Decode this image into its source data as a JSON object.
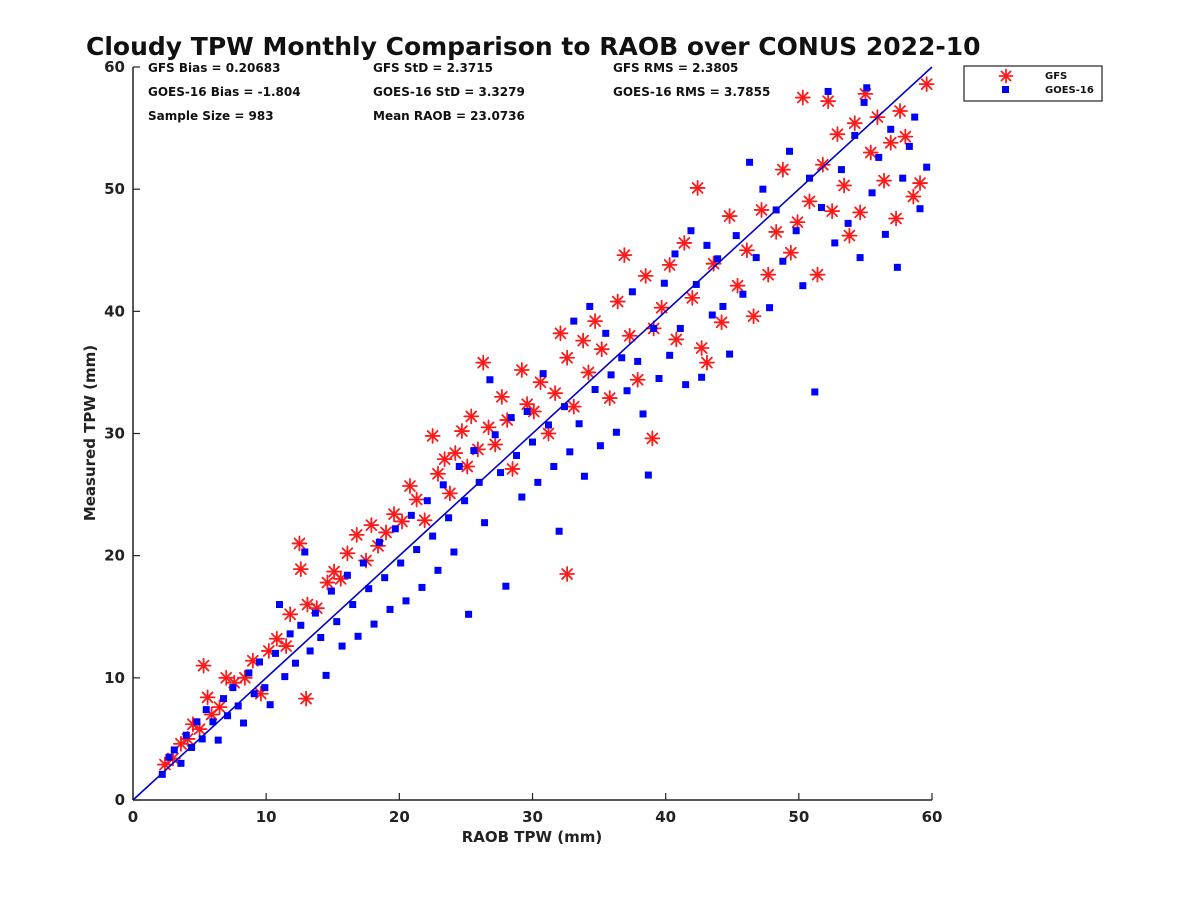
{
  "chart_data": {
    "type": "scatter",
    "title": "Cloudy TPW Monthly Comparison to RAOB over CONUS 2022-10",
    "xlabel": "RAOB TPW (mm)",
    "ylabel": "Measured TPW (mm)",
    "xlim": [
      0,
      60
    ],
    "ylim": [
      0,
      60
    ],
    "x_ticks": [
      0,
      10,
      20,
      30,
      40,
      50,
      60
    ],
    "y_ticks": [
      0,
      10,
      20,
      30,
      40,
      50,
      60
    ],
    "grid": false,
    "legend_position": "top-right, outside plot",
    "reference_line": {
      "from": [
        0,
        0
      ],
      "to": [
        60,
        60
      ],
      "color": "#0000cc"
    },
    "stats": {
      "gfs_bias": "GFS Bias = 0.20683",
      "goes_bias": "GOES-16 Bias = -1.804",
      "sample_size": "Sample Size = 983",
      "gfs_std": "GFS StD = 2.3715",
      "goes_std": "GOES-16 StD = 3.3279",
      "mean_raob": "Mean RAOB = 23.0736",
      "gfs_rms": "GFS RMS = 2.3805",
      "goes_rms": "GOES-16 RMS = 3.7855"
    },
    "series": [
      {
        "name": "GFS",
        "marker": "asterisk",
        "color": "#ff1a1a",
        "points": [
          [
            2.4,
            2.9
          ],
          [
            3.0,
            3.4
          ],
          [
            3.6,
            4.6
          ],
          [
            4.1,
            5.0
          ],
          [
            4.5,
            6.2
          ],
          [
            5.0,
            5.8
          ],
          [
            5.3,
            11.0
          ],
          [
            5.6,
            8.4
          ],
          [
            5.9,
            7.0
          ],
          [
            6.5,
            7.6
          ],
          [
            7.0,
            10.0
          ],
          [
            7.6,
            9.6
          ],
          [
            8.4,
            10.0
          ],
          [
            9.0,
            11.4
          ],
          [
            9.6,
            8.7
          ],
          [
            10.2,
            12.2
          ],
          [
            10.8,
            13.2
          ],
          [
            11.5,
            12.6
          ],
          [
            11.8,
            15.2
          ],
          [
            12.5,
            21.0
          ],
          [
            12.6,
            18.9
          ],
          [
            13.0,
            8.3
          ],
          [
            13.1,
            16.0
          ],
          [
            13.8,
            15.7
          ],
          [
            14.6,
            17.8
          ],
          [
            15.1,
            18.7
          ],
          [
            15.6,
            18.1
          ],
          [
            16.1,
            20.2
          ],
          [
            16.8,
            21.7
          ],
          [
            17.5,
            19.6
          ],
          [
            17.9,
            22.5
          ],
          [
            18.4,
            20.8
          ],
          [
            19.0,
            21.9
          ],
          [
            19.6,
            23.4
          ],
          [
            20.2,
            22.8
          ],
          [
            20.8,
            25.7
          ],
          [
            21.3,
            24.6
          ],
          [
            21.9,
            22.9
          ],
          [
            22.5,
            29.8
          ],
          [
            22.9,
            26.7
          ],
          [
            23.4,
            27.9
          ],
          [
            23.8,
            25.1
          ],
          [
            24.2,
            28.4
          ],
          [
            24.7,
            30.2
          ],
          [
            25.1,
            27.3
          ],
          [
            25.4,
            31.4
          ],
          [
            25.9,
            28.7
          ],
          [
            26.3,
            35.8
          ],
          [
            26.7,
            30.5
          ],
          [
            27.2,
            29.1
          ],
          [
            27.7,
            33.0
          ],
          [
            28.1,
            31.1
          ],
          [
            28.5,
            27.1
          ],
          [
            29.2,
            35.2
          ],
          [
            29.6,
            32.4
          ],
          [
            30.1,
            31.8
          ],
          [
            30.6,
            34.2
          ],
          [
            31.2,
            30.0
          ],
          [
            31.7,
            33.3
          ],
          [
            32.1,
            38.2
          ],
          [
            32.6,
            18.5
          ],
          [
            32.6,
            36.2
          ],
          [
            33.1,
            32.2
          ],
          [
            33.8,
            37.6
          ],
          [
            34.2,
            35.0
          ],
          [
            34.7,
            39.2
          ],
          [
            35.2,
            36.9
          ],
          [
            35.8,
            32.9
          ],
          [
            36.4,
            40.8
          ],
          [
            36.9,
            44.6
          ],
          [
            37.3,
            38.0
          ],
          [
            37.9,
            34.4
          ],
          [
            38.5,
            42.9
          ],
          [
            39.0,
            29.6
          ],
          [
            39.1,
            38.6
          ],
          [
            39.7,
            40.3
          ],
          [
            40.3,
            43.8
          ],
          [
            40.8,
            37.7
          ],
          [
            41.4,
            45.6
          ],
          [
            42.0,
            41.1
          ],
          [
            42.4,
            50.1
          ],
          [
            42.7,
            37.0
          ],
          [
            43.1,
            35.8
          ],
          [
            43.6,
            43.9
          ],
          [
            44.2,
            39.1
          ],
          [
            44.8,
            47.8
          ],
          [
            45.4,
            42.1
          ],
          [
            46.1,
            45.0
          ],
          [
            46.6,
            39.6
          ],
          [
            47.2,
            48.3
          ],
          [
            47.7,
            43.0
          ],
          [
            48.3,
            46.5
          ],
          [
            48.8,
            51.6
          ],
          [
            49.4,
            44.8
          ],
          [
            49.9,
            47.3
          ],
          [
            50.3,
            57.5
          ],
          [
            50.8,
            49.0
          ],
          [
            51.4,
            43.0
          ],
          [
            51.8,
            52.0
          ],
          [
            52.2,
            57.2
          ],
          [
            52.5,
            48.2
          ],
          [
            52.9,
            54.5
          ],
          [
            53.4,
            50.3
          ],
          [
            53.8,
            46.2
          ],
          [
            54.2,
            55.4
          ],
          [
            54.6,
            48.1
          ],
          [
            55.0,
            57.8
          ],
          [
            55.4,
            53.0
          ],
          [
            55.9,
            55.9
          ],
          [
            56.4,
            50.7
          ],
          [
            56.9,
            53.8
          ],
          [
            57.3,
            47.6
          ],
          [
            57.6,
            56.4
          ],
          [
            58.0,
            54.3
          ],
          [
            58.6,
            49.4
          ],
          [
            59.1,
            50.5
          ],
          [
            59.6,
            58.6
          ]
        ]
      },
      {
        "name": "GOES-16",
        "marker": "square",
        "color": "#0000ff",
        "points": [
          [
            2.2,
            2.1
          ],
          [
            2.7,
            3.5
          ],
          [
            3.1,
            4.1
          ],
          [
            3.6,
            3.0
          ],
          [
            4.0,
            5.3
          ],
          [
            4.4,
            4.3
          ],
          [
            4.8,
            6.4
          ],
          [
            5.2,
            5.0
          ],
          [
            5.5,
            7.4
          ],
          [
            6.0,
            6.4
          ],
          [
            6.4,
            4.9
          ],
          [
            6.8,
            8.3
          ],
          [
            7.1,
            6.9
          ],
          [
            7.5,
            9.2
          ],
          [
            7.9,
            7.7
          ],
          [
            8.3,
            6.3
          ],
          [
            8.7,
            10.4
          ],
          [
            9.1,
            8.7
          ],
          [
            9.5,
            11.3
          ],
          [
            9.9,
            9.2
          ],
          [
            10.3,
            7.8
          ],
          [
            10.7,
            12.0
          ],
          [
            11.0,
            16.0
          ],
          [
            11.4,
            10.1
          ],
          [
            11.8,
            13.6
          ],
          [
            12.2,
            11.2
          ],
          [
            12.6,
            14.3
          ],
          [
            12.9,
            20.3
          ],
          [
            13.3,
            12.2
          ],
          [
            13.7,
            15.3
          ],
          [
            14.1,
            13.3
          ],
          [
            14.5,
            10.2
          ],
          [
            14.9,
            17.1
          ],
          [
            15.3,
            14.6
          ],
          [
            15.7,
            12.6
          ],
          [
            16.1,
            18.4
          ],
          [
            16.5,
            16.0
          ],
          [
            16.9,
            13.4
          ],
          [
            17.3,
            19.4
          ],
          [
            17.7,
            17.3
          ],
          [
            18.1,
            14.4
          ],
          [
            18.5,
            21.1
          ],
          [
            18.9,
            18.2
          ],
          [
            19.3,
            15.6
          ],
          [
            19.7,
            22.2
          ],
          [
            20.1,
            19.4
          ],
          [
            20.5,
            16.3
          ],
          [
            20.9,
            23.3
          ],
          [
            21.3,
            20.5
          ],
          [
            21.7,
            17.4
          ],
          [
            22.1,
            24.5
          ],
          [
            22.5,
            21.6
          ],
          [
            22.9,
            18.8
          ],
          [
            23.3,
            25.8
          ],
          [
            23.7,
            23.1
          ],
          [
            24.1,
            20.3
          ],
          [
            24.5,
            27.3
          ],
          [
            24.9,
            24.5
          ],
          [
            25.2,
            15.2
          ],
          [
            25.6,
            28.6
          ],
          [
            26.0,
            26.0
          ],
          [
            26.4,
            22.7
          ],
          [
            26.8,
            34.4
          ],
          [
            27.2,
            29.9
          ],
          [
            27.6,
            26.8
          ],
          [
            28.0,
            17.5
          ],
          [
            28.4,
            31.3
          ],
          [
            28.8,
            28.2
          ],
          [
            29.2,
            24.8
          ],
          [
            29.6,
            31.8
          ],
          [
            30.0,
            29.3
          ],
          [
            30.4,
            26.0
          ],
          [
            30.8,
            34.9
          ],
          [
            31.2,
            30.7
          ],
          [
            31.6,
            27.3
          ],
          [
            32.0,
            22.0
          ],
          [
            32.4,
            32.2
          ],
          [
            32.8,
            28.5
          ],
          [
            33.1,
            39.2
          ],
          [
            33.5,
            30.8
          ],
          [
            33.9,
            26.5
          ],
          [
            34.3,
            40.4
          ],
          [
            34.7,
            33.6
          ],
          [
            35.1,
            29.0
          ],
          [
            35.5,
            38.2
          ],
          [
            35.9,
            34.8
          ],
          [
            36.3,
            30.1
          ],
          [
            36.7,
            36.2
          ],
          [
            37.1,
            33.5
          ],
          [
            37.5,
            41.6
          ],
          [
            37.9,
            35.9
          ],
          [
            38.3,
            31.6
          ],
          [
            38.7,
            26.6
          ],
          [
            39.1,
            38.6
          ],
          [
            39.5,
            34.5
          ],
          [
            39.9,
            42.3
          ],
          [
            40.3,
            36.4
          ],
          [
            40.7,
            44.7
          ],
          [
            41.1,
            38.6
          ],
          [
            41.5,
            34.0
          ],
          [
            41.9,
            46.6
          ],
          [
            42.3,
            42.2
          ],
          [
            42.7,
            34.6
          ],
          [
            43.1,
            45.4
          ],
          [
            43.5,
            39.7
          ],
          [
            43.9,
            44.3
          ],
          [
            44.3,
            40.4
          ],
          [
            44.8,
            36.5
          ],
          [
            45.3,
            46.2
          ],
          [
            45.8,
            41.4
          ],
          [
            46.3,
            52.2
          ],
          [
            46.8,
            44.4
          ],
          [
            47.3,
            50.0
          ],
          [
            47.8,
            40.3
          ],
          [
            48.3,
            48.3
          ],
          [
            48.8,
            44.1
          ],
          [
            49.3,
            53.1
          ],
          [
            49.8,
            46.6
          ],
          [
            50.3,
            42.1
          ],
          [
            50.8,
            50.9
          ],
          [
            51.2,
            33.4
          ],
          [
            51.7,
            48.5
          ],
          [
            52.2,
            58.0
          ],
          [
            52.7,
            45.6
          ],
          [
            53.2,
            51.6
          ],
          [
            53.7,
            47.2
          ],
          [
            54.2,
            54.4
          ],
          [
            54.6,
            44.4
          ],
          [
            55.1,
            58.3
          ],
          [
            55.5,
            49.7
          ],
          [
            56.0,
            52.6
          ],
          [
            56.5,
            46.3
          ],
          [
            56.9,
            54.9
          ],
          [
            57.4,
            43.6
          ],
          [
            57.8,
            50.9
          ],
          [
            58.3,
            53.5
          ],
          [
            58.7,
            55.9
          ],
          [
            59.1,
            48.4
          ],
          [
            59.6,
            51.8
          ],
          [
            54.9,
            57.1
          ]
        ]
      }
    ]
  }
}
